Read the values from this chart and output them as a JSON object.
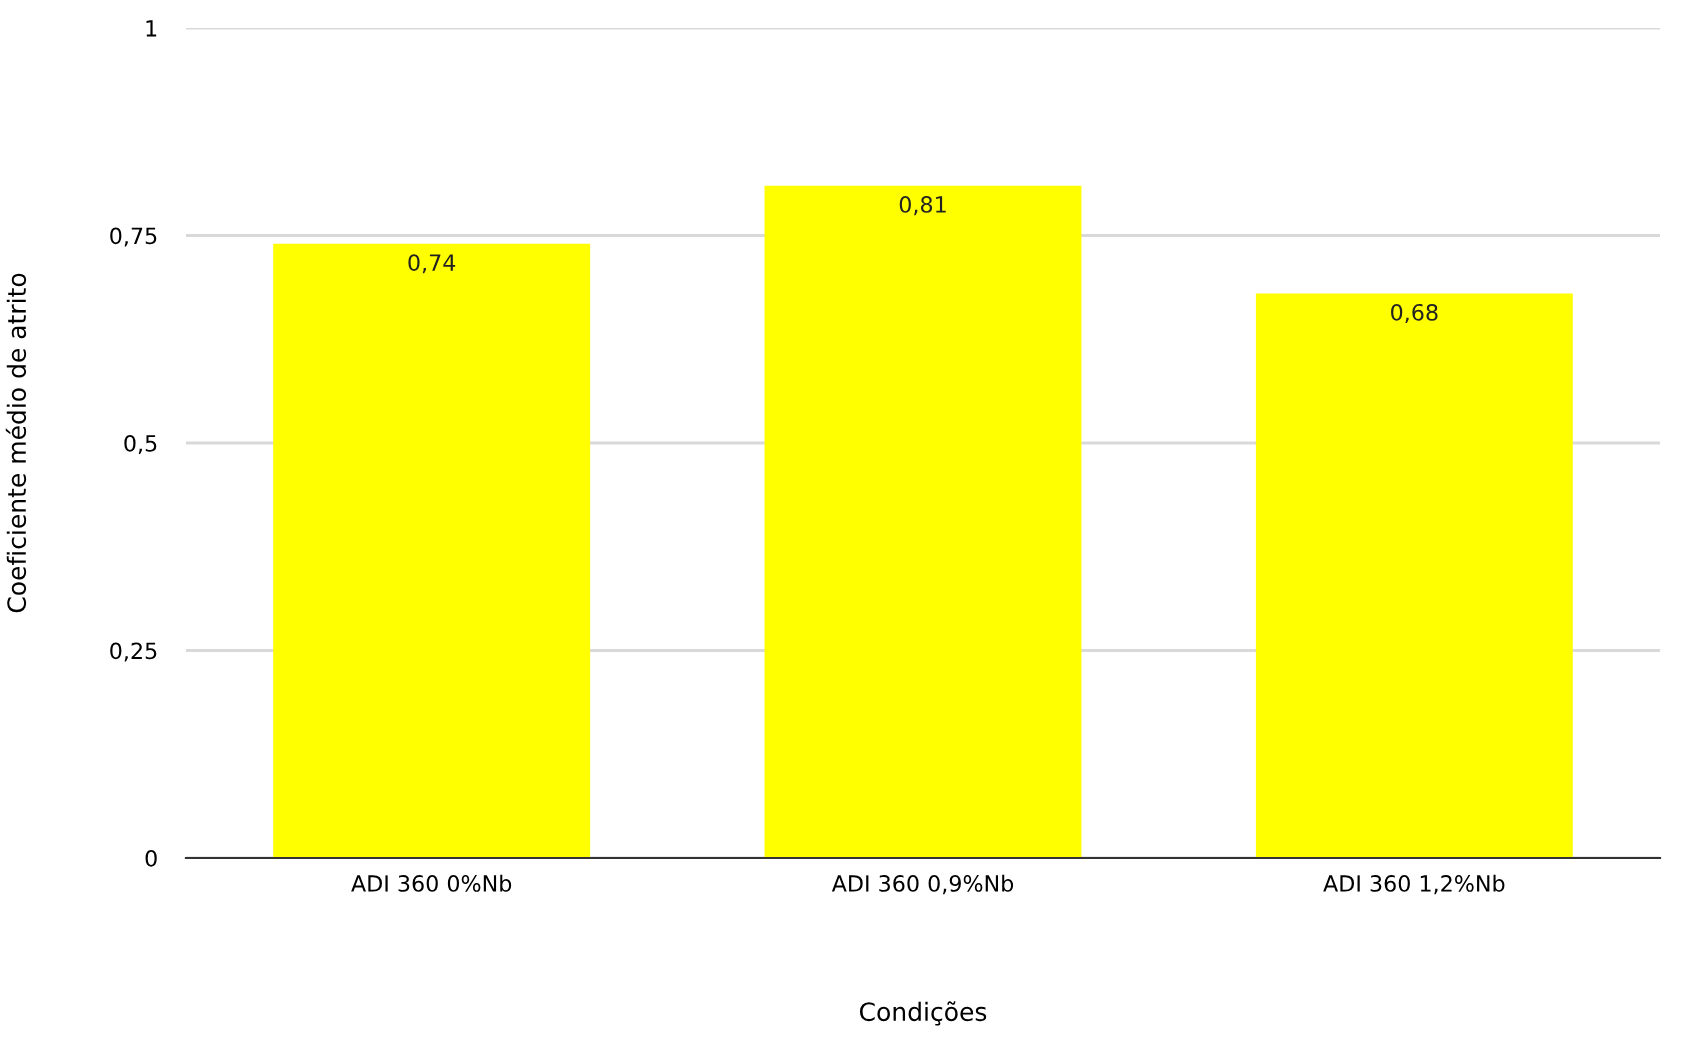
{
  "chart_data": {
    "type": "bar",
    "xlabel": "Condições",
    "ylabel": "Coeficiente médio de atrito",
    "categories": [
      "ADI 360 0%Nb",
      "ADI 360 0,9%Nb",
      "ADI 360 1,2%Nb"
    ],
    "values": [
      0.74,
      0.81,
      0.68
    ],
    "color": "#ffff00",
    "value_labels": [
      "0,74",
      "0,81",
      "0,68"
    ],
    "ylim": [
      0,
      1
    ],
    "yticks": [
      0,
      {
        "value": 0.25,
        "label": "0,25"
      },
      {
        "value": 0.5,
        "label": "0,5"
      },
      {
        "value": 0.75,
        "label": "0,75"
      },
      1
    ],
    "grid": "y",
    "legend": false
  }
}
